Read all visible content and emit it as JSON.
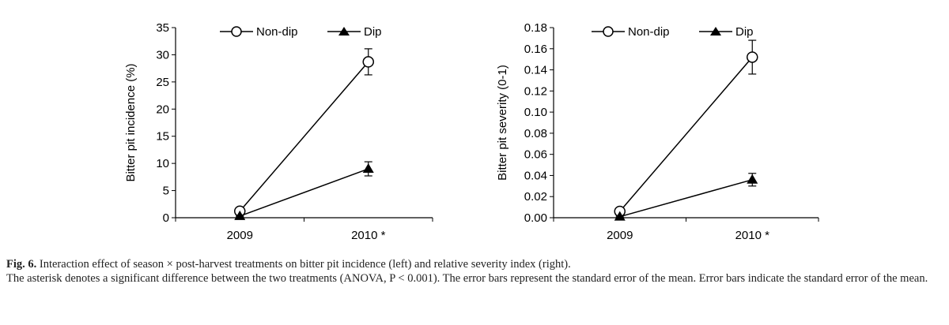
{
  "chart_data": [
    {
      "type": "line",
      "categories": [
        "2009",
        "2010 *"
      ],
      "ylabel": "Bitter pit incidence (%)",
      "ylim": [
        0,
        35
      ],
      "yticks": [
        0,
        5,
        10,
        15,
        20,
        25,
        30,
        35
      ],
      "ytick_labels": [
        "0",
        "5",
        "10",
        "15",
        "20",
        "25",
        "30",
        "35"
      ],
      "legend_position": "top",
      "grid": false,
      "series": [
        {
          "name": "Non-dip",
          "marker": "open-circle",
          "values": [
            1.2,
            28.7
          ],
          "errors": [
            0.2,
            2.4
          ]
        },
        {
          "name": "Dip",
          "marker": "filled-triangle",
          "values": [
            0.3,
            9.0
          ],
          "errors": [
            0.1,
            1.3
          ]
        }
      ]
    },
    {
      "type": "line",
      "categories": [
        "2009",
        "2010 *"
      ],
      "ylabel": "Bitter pit severity (0-1)",
      "ylim": [
        0,
        0.18
      ],
      "yticks": [
        0,
        0.02,
        0.04,
        0.06,
        0.08,
        0.1,
        0.12,
        0.14,
        0.16,
        0.18
      ],
      "ytick_labels": [
        "0.00",
        "0.02",
        "0.04",
        "0.06",
        "0.08",
        "0.10",
        "0.12",
        "0.14",
        "0.16",
        "0.18"
      ],
      "legend_position": "top",
      "grid": false,
      "series": [
        {
          "name": "Non-dip",
          "marker": "open-circle",
          "values": [
            0.006,
            0.152
          ],
          "errors": [
            0.001,
            0.016
          ]
        },
        {
          "name": "Dip",
          "marker": "filled-triangle",
          "values": [
            0.001,
            0.036
          ],
          "errors": [
            0.0005,
            0.006
          ]
        }
      ]
    }
  ],
  "caption": {
    "label": "Fig. 6.",
    "line1": "Interaction effect of season × post-harvest treatments on bitter pit incidence (left) and relative severity index (right).",
    "line2": "The asterisk denotes a significant difference between the two treatments (ANOVA, P < 0.001). The error bars represent the standard error of the mean. Error bars indicate the standard error of the mean."
  },
  "colors": {
    "line": "#000000",
    "background": "#ffffff"
  }
}
